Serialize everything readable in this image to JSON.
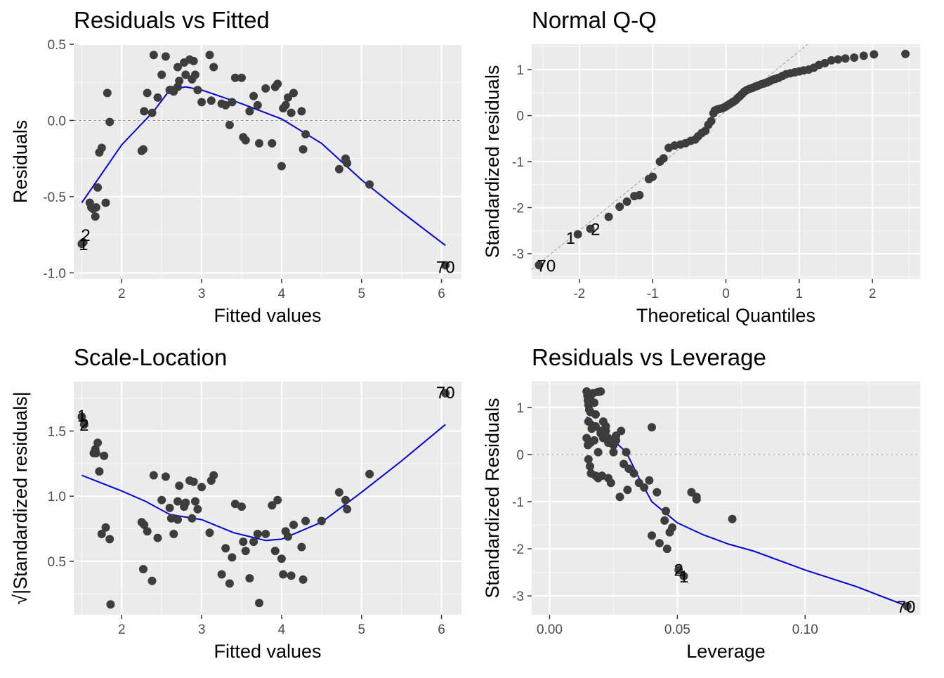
{
  "colors": {
    "panel_bg": "#ebebeb",
    "point": "#3d3d3d",
    "smooth": "#0000cc",
    "reference": "#999999"
  },
  "chart_data": [
    {
      "type": "scatter",
      "title": "Residuals vs Fitted",
      "xlabel": "Fitted values",
      "ylabel": "Residuals",
      "xlim": [
        1.4,
        6.25
      ],
      "ylim": [
        -1.04,
        0.5
      ],
      "xticks": [
        2,
        3,
        4,
        5,
        6
      ],
      "yticks": [
        -1.0,
        -0.5,
        0.0,
        0.5
      ],
      "ytick_labels": [
        "-1.0",
        "-0.5",
        "0.0",
        "0.5"
      ],
      "reference_line": "hline y=0",
      "x": [
        1.5,
        1.52,
        1.6,
        1.62,
        1.64,
        1.67,
        1.7,
        1.72,
        1.68,
        1.8,
        1.75,
        1.82,
        1.85,
        2.25,
        2.27,
        2.28,
        2.32,
        2.38,
        2.4,
        2.45,
        2.5,
        2.55,
        2.6,
        2.62,
        2.65,
        2.7,
        2.7,
        2.72,
        2.78,
        2.8,
        2.85,
        2.88,
        2.9,
        2.92,
        2.95,
        3.0,
        3.1,
        3.12,
        3.15,
        3.25,
        3.3,
        3.35,
        3.38,
        3.42,
        3.5,
        3.52,
        3.55,
        3.6,
        3.65,
        3.7,
        3.72,
        3.8,
        3.88,
        3.92,
        3.95,
        4.0,
        4.02,
        4.05,
        4.08,
        4.12,
        4.15,
        4.25,
        4.27,
        4.3,
        4.72,
        4.8,
        4.82,
        5.1,
        6.05
      ],
      "y": [
        -0.81,
        -0.8,
        -0.54,
        -0.57,
        -0.58,
        -0.63,
        -0.44,
        -0.21,
        -0.57,
        -0.54,
        -0.18,
        0.18,
        -0.01,
        -0.2,
        -0.19,
        0.06,
        0.18,
        0.05,
        0.43,
        0.15,
        0.3,
        0.42,
        0.2,
        0.2,
        0.19,
        0.22,
        0.35,
        0.26,
        0.38,
        0.3,
        0.4,
        0.27,
        0.39,
        0.3,
        0.2,
        0.12,
        0.43,
        0.13,
        0.35,
        0.11,
        0.1,
        -0.03,
        0.12,
        0.28,
        0.28,
        -0.11,
        -0.13,
        0.06,
        0.16,
        0.1,
        -0.15,
        0.21,
        -0.15,
        0.22,
        0.24,
        -0.3,
        0.08,
        0.1,
        0.15,
        0.05,
        0.18,
        0.06,
        -0.19,
        -0.09,
        -0.32,
        -0.25,
        -0.28,
        -0.42,
        -0.95
      ],
      "smooth_x": [
        1.5,
        2.0,
        2.4,
        2.6,
        2.8,
        3.0,
        3.5,
        4.0,
        4.5,
        5.0,
        5.5,
        6.05
      ],
      "smooth_y": [
        -0.54,
        -0.16,
        0.06,
        0.2,
        0.22,
        0.2,
        0.11,
        0.01,
        -0.15,
        -0.39,
        -0.6,
        -0.82
      ],
      "point_labels": [
        {
          "label": "1",
          "x": 1.52,
          "y": -0.81
        },
        {
          "label": "2",
          "x": 1.55,
          "y": -0.75
        },
        {
          "label": "70",
          "x": 6.05,
          "y": -0.96
        }
      ]
    },
    {
      "type": "scatter",
      "title": "Normal Q-Q",
      "xlabel": "Theoretical Quantiles",
      "ylabel": "Standardized residuals",
      "xlim": [
        -2.65,
        2.65
      ],
      "ylim": [
        -3.55,
        1.55
      ],
      "xticks": [
        -2,
        -1,
        0,
        1,
        2
      ],
      "yticks": [
        -3,
        -2,
        -1,
        0,
        1
      ],
      "ytick_labels": [
        "-3",
        "-2",
        "-1",
        "0",
        "1"
      ],
      "reference_line": "qq line y = 1.3x + 0.1",
      "x": [
        -2.55,
        -2.02,
        -1.85,
        -1.6,
        -1.45,
        -1.35,
        -1.25,
        -1.18,
        -1.05,
        -1.0,
        -0.9,
        -0.85,
        -0.78,
        -0.7,
        -0.62,
        -0.55,
        -0.48,
        -0.42,
        -0.38,
        -0.33,
        -0.28,
        -0.24,
        -0.2,
        -0.17,
        -0.15,
        -0.12,
        -0.1,
        -0.08,
        -0.05,
        -0.02,
        0.0,
        0.02,
        0.05,
        0.08,
        0.1,
        0.13,
        0.16,
        0.19,
        0.22,
        0.25,
        0.28,
        0.32,
        0.36,
        0.4,
        0.44,
        0.48,
        0.52,
        0.56,
        0.6,
        0.64,
        0.68,
        0.72,
        0.77,
        0.82,
        0.88,
        0.94,
        1.0,
        1.06,
        1.13,
        1.2,
        1.27,
        1.35,
        1.44,
        1.53,
        1.63,
        1.75,
        1.88,
        2.02,
        2.45
      ],
      "y": [
        -3.25,
        -2.58,
        -2.46,
        -2.2,
        -1.98,
        -1.87,
        -1.75,
        -1.73,
        -1.38,
        -1.33,
        -1.0,
        -0.93,
        -0.7,
        -0.65,
        -0.63,
        -0.6,
        -0.55,
        -0.52,
        -0.45,
        -0.38,
        -0.33,
        -0.2,
        -0.12,
        0.05,
        0.11,
        0.13,
        0.14,
        0.15,
        0.16,
        0.18,
        0.2,
        0.22,
        0.25,
        0.28,
        0.3,
        0.33,
        0.38,
        0.42,
        0.47,
        0.52,
        0.55,
        0.58,
        0.6,
        0.63,
        0.65,
        0.68,
        0.7,
        0.72,
        0.75,
        0.78,
        0.8,
        0.82,
        0.86,
        0.9,
        0.92,
        0.94,
        0.96,
        0.98,
        1.0,
        1.04,
        1.1,
        1.14,
        1.2,
        1.22,
        1.24,
        1.26,
        1.3,
        1.33,
        1.34
      ],
      "point_labels": [
        {
          "label": "1",
          "x": -2.12,
          "y": -2.65
        },
        {
          "label": "2",
          "x": -1.78,
          "y": -2.46
        },
        {
          "label": "70",
          "x": -2.45,
          "y": -3.25
        }
      ]
    },
    {
      "type": "scatter",
      "title": "Scale-Location",
      "xlabel": "Fitted values",
      "ylabel": "√|Standardized residuals|",
      "xlim": [
        1.4,
        6.25
      ],
      "ylim": [
        0.09,
        1.88
      ],
      "xticks": [
        2,
        3,
        4,
        5,
        6
      ],
      "yticks": [
        0.5,
        1.0,
        1.5
      ],
      "ytick_labels": [
        "0.5",
        "1.0",
        "1.5"
      ],
      "x": [
        1.5,
        1.53,
        1.65,
        1.67,
        1.7,
        1.72,
        1.68,
        1.78,
        1.8,
        1.86,
        1.85,
        1.75,
        2.25,
        2.27,
        2.28,
        2.32,
        2.38,
        2.4,
        2.45,
        2.5,
        2.55,
        2.6,
        2.62,
        2.65,
        2.7,
        2.72,
        2.7,
        2.78,
        2.8,
        2.85,
        2.88,
        2.9,
        2.92,
        2.95,
        3.0,
        3.1,
        3.12,
        3.15,
        3.25,
        3.3,
        3.35,
        3.38,
        3.42,
        3.5,
        3.52,
        3.55,
        3.6,
        3.65,
        3.7,
        3.72,
        3.8,
        3.88,
        3.92,
        3.95,
        4.0,
        4.02,
        4.05,
        4.08,
        4.12,
        4.15,
        4.25,
        4.27,
        4.3,
        4.5,
        4.72,
        4.8,
        4.82,
        5.1,
        6.05
      ],
      "y": [
        1.61,
        1.55,
        1.33,
        1.36,
        1.41,
        1.19,
        1.33,
        1.31,
        0.76,
        0.17,
        0.67,
        0.71,
        0.8,
        0.44,
        0.78,
        0.73,
        0.35,
        1.16,
        0.68,
        0.97,
        1.15,
        0.91,
        0.83,
        0.71,
        0.96,
        1.08,
        0.82,
        0.92,
        0.95,
        1.12,
        0.83,
        1.11,
        0.96,
        0.9,
        1.07,
        0.72,
        1.12,
        1.16,
        0.4,
        0.6,
        0.33,
        0.53,
        0.94,
        0.92,
        0.65,
        0.58,
        0.37,
        0.65,
        0.71,
        0.18,
        0.71,
        0.93,
        0.58,
        0.97,
        0.52,
        0.4,
        0.73,
        0.69,
        0.39,
        0.78,
        0.61,
        0.36,
        0.81,
        0.81,
        1.03,
        0.97,
        0.9,
        1.17,
        1.79
      ],
      "smooth_x": [
        1.5,
        2.0,
        2.3,
        2.6,
        3.0,
        3.4,
        3.8,
        4.0,
        4.5,
        5.0,
        5.5,
        6.05
      ],
      "smooth_y": [
        1.16,
        1.04,
        0.96,
        0.86,
        0.82,
        0.72,
        0.66,
        0.67,
        0.8,
        1.03,
        1.27,
        1.55
      ],
      "point_labels": [
        {
          "label": "1",
          "x": 1.5,
          "y": 1.62
        },
        {
          "label": "2",
          "x": 1.53,
          "y": 1.55
        },
        {
          "label": "70",
          "x": 6.05,
          "y": 1.8
        }
      ]
    },
    {
      "type": "scatter",
      "title": "Residuals vs Leverage",
      "xlabel": "Leverage",
      "ylabel": "Standardized Residuals",
      "xlim": [
        -0.007,
        0.145
      ],
      "ylim": [
        -3.4,
        1.55
      ],
      "xticks": [
        0.0,
        0.05,
        0.1
      ],
      "xtick_labels": [
        "0.00",
        "0.05",
        "0.10"
      ],
      "yticks": [
        -3,
        -2,
        -1,
        0,
        1
      ],
      "ytick_labels": [
        "-3",
        "-2",
        "-1",
        "0",
        "1"
      ],
      "reference_line": "hline y=0",
      "x": [
        0.0145,
        0.0148,
        0.015,
        0.0152,
        0.0155,
        0.016,
        0.0158,
        0.017,
        0.0175,
        0.018,
        0.019,
        0.02,
        0.021,
        0.022,
        0.0152,
        0.0165,
        0.018,
        0.02,
        0.022,
        0.023,
        0.0245,
        0.025,
        0.026,
        0.028,
        0.03,
        0.0145,
        0.015,
        0.016,
        0.0168,
        0.0175,
        0.019,
        0.02,
        0.021,
        0.023,
        0.025,
        0.026,
        0.029,
        0.031,
        0.033,
        0.035,
        0.037,
        0.039,
        0.04,
        0.042,
        0.045,
        0.047,
        0.048,
        0.04,
        0.043,
        0.046,
        0.0455,
        0.0555,
        0.0575,
        0.0575,
        0.0715,
        0.0152,
        0.0158,
        0.0162,
        0.018,
        0.019,
        0.0205,
        0.023,
        0.024,
        0.0275,
        0.0305,
        0.0505,
        0.0525,
        0.14
      ],
      "y": [
        1.34,
        1.25,
        1.15,
        1.05,
        0.95,
        0.9,
        1.2,
        1.3,
        1.1,
        0.85,
        1.33,
        1.34,
        0.7,
        0.6,
        0.7,
        0.55,
        0.6,
        0.45,
        0.5,
        0.35,
        0.25,
        0.2,
        0.3,
        0.5,
        0.05,
        0.35,
        0.2,
        0.25,
        0.6,
        0.3,
        0.05,
        0.5,
        0.35,
        0.25,
        0.05,
        0.4,
        -0.2,
        -0.3,
        -0.4,
        -0.6,
        -0.7,
        -0.55,
        0.58,
        -0.8,
        -1.4,
        -1.65,
        -1.55,
        -1.72,
        -1.88,
        -2.0,
        -1.2,
        -0.8,
        -0.9,
        -0.95,
        -1.37,
        -0.1,
        -0.25,
        -0.4,
        -0.45,
        -0.5,
        -0.45,
        -0.5,
        -0.6,
        -0.9,
        -0.75,
        -2.45,
        -2.58,
        -3.22
      ],
      "smooth_x": [
        0.0145,
        0.02,
        0.025,
        0.03,
        0.035,
        0.04,
        0.05,
        0.06,
        0.07,
        0.08,
        0.1,
        0.12,
        0.14
      ],
      "smooth_y": [
        0.8,
        0.55,
        0.3,
        0.05,
        -0.5,
        -1.0,
        -1.45,
        -1.7,
        -1.9,
        -2.05,
        -2.45,
        -2.8,
        -3.22
      ],
      "point_labels": [
        {
          "label": "2",
          "x": 0.0505,
          "y": -2.44
        },
        {
          "label": "1",
          "x": 0.0525,
          "y": -2.58
        },
        {
          "label": "70",
          "x": 0.1395,
          "y": -3.22
        }
      ]
    }
  ]
}
